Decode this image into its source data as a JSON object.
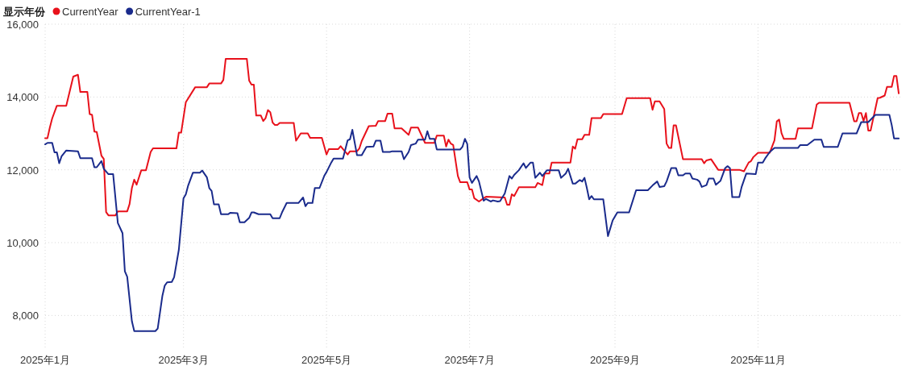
{
  "chart_data": {
    "type": "line",
    "legend_title": "显示年份",
    "legend": "top left",
    "grid": true,
    "xlim": [
      "2025-01-01",
      "2026-01-01"
    ],
    "xticks": [
      {
        "value": "2025-01-01",
        "label": "2025年1月"
      },
      {
        "value": "2025-03-01",
        "label": "2025年3月"
      },
      {
        "value": "2025-05-01",
        "label": "2025年5月"
      },
      {
        "value": "2025-07-01",
        "label": "2025年7月"
      },
      {
        "value": "2025-09-01",
        "label": "2025年9月"
      },
      {
        "value": "2025-11-01",
        "label": "2025年11月"
      }
    ],
    "ylim": [
      7100,
      16000
    ],
    "yticks": [
      {
        "value": 8000,
        "label": "8,000"
      },
      {
        "value": 10000,
        "label": "10,000"
      },
      {
        "value": 12000,
        "label": "12,000"
      },
      {
        "value": 14000,
        "label": "14,000"
      },
      {
        "value": 16000,
        "label": "16,000"
      }
    ],
    "series": [
      {
        "name": "CurrentYear",
        "color": "#e8111b",
        "x": [
          "2025-01-01",
          "2025-01-02",
          "2025-01-03",
          "2025-01-04",
          "2025-01-06",
          "2025-01-10",
          "2025-01-13",
          "2025-01-15",
          "2025-01-16",
          "2025-01-19",
          "2025-01-20",
          "2025-01-21",
          "2025-01-22",
          "2025-01-23",
          "2025-01-25",
          "2025-01-26",
          "2025-01-27",
          "2025-01-28",
          "2025-01-31",
          "2025-02-01",
          "2025-02-05",
          "2025-02-06",
          "2025-02-07",
          "2025-02-08",
          "2025-02-09",
          "2025-02-11",
          "2025-02-13",
          "2025-02-15",
          "2025-02-16",
          "2025-02-26",
          "2025-02-27",
          "2025-02-28",
          "2025-03-02",
          "2025-03-06",
          "2025-03-11",
          "2025-03-12",
          "2025-03-17",
          "2025-03-18",
          "2025-03-19",
          "2025-03-28",
          "2025-03-29",
          "2025-03-30",
          "2025-03-31",
          "2025-04-01",
          "2025-04-03",
          "2025-04-04",
          "2025-04-05",
          "2025-04-06",
          "2025-04-07",
          "2025-04-08",
          "2025-04-09",
          "2025-04-10",
          "2025-04-11",
          "2025-04-17",
          "2025-04-18",
          "2025-04-20",
          "2025-04-23",
          "2025-04-24",
          "2025-04-29",
          "2025-05-01",
          "2025-05-02",
          "2025-05-06",
          "2025-05-07",
          "2025-05-08",
          "2025-05-10",
          "2025-05-11",
          "2025-05-14",
          "2025-05-15",
          "2025-05-16",
          "2025-05-19",
          "2025-05-22",
          "2025-05-23",
          "2025-05-26",
          "2025-05-27",
          "2025-05-29",
          "2025-05-30",
          "2025-06-02",
          "2025-06-05",
          "2025-06-06",
          "2025-06-09",
          "2025-06-12",
          "2025-06-16",
          "2025-06-17",
          "2025-06-20",
          "2025-06-21",
          "2025-06-22",
          "2025-06-23",
          "2025-06-24",
          "2025-06-26",
          "2025-06-27",
          "2025-06-30",
          "2025-07-01",
          "2025-07-02",
          "2025-07-03",
          "2025-07-05",
          "2025-07-07",
          "2025-07-08",
          "2025-07-16",
          "2025-07-17",
          "2025-07-18",
          "2025-07-19",
          "2025-07-20",
          "2025-07-22",
          "2025-07-29",
          "2025-07-30",
          "2025-08-01",
          "2025-08-02",
          "2025-08-04",
          "2025-08-05",
          "2025-08-13",
          "2025-08-14",
          "2025-08-15",
          "2025-08-16",
          "2025-08-18",
          "2025-08-19",
          "2025-08-21",
          "2025-08-22",
          "2025-08-26",
          "2025-08-27",
          "2025-09-04",
          "2025-09-06",
          "2025-09-16",
          "2025-09-17",
          "2025-09-18",
          "2025-09-20",
          "2025-09-22",
          "2025-09-23",
          "2025-09-24",
          "2025-09-25",
          "2025-09-26",
          "2025-09-27",
          "2025-09-30",
          "2025-10-08",
          "2025-10-09",
          "2025-10-10",
          "2025-10-12",
          "2025-10-15",
          "2025-10-24",
          "2025-10-26",
          "2025-10-28",
          "2025-10-29",
          "2025-10-30",
          "2025-11-01",
          "2025-11-06",
          "2025-11-08",
          "2025-11-09",
          "2025-11-10",
          "2025-11-11",
          "2025-11-12",
          "2025-11-17",
          "2025-11-18",
          "2025-11-24",
          "2025-11-26",
          "2025-11-27",
          "2025-12-10",
          "2025-12-12",
          "2025-12-13",
          "2025-12-14",
          "2025-12-15",
          "2025-12-16",
          "2025-12-17",
          "2025-12-18",
          "2025-12-19",
          "2025-12-22",
          "2025-12-23",
          "2025-12-25",
          "2025-12-26",
          "2025-12-28",
          "2025-12-29",
          "2025-12-30",
          "2025-12-31"
        ],
        "values": [
          12870,
          12870,
          13160,
          13410,
          13760,
          13760,
          14560,
          14610,
          14140,
          14140,
          13530,
          13510,
          13050,
          13040,
          12390,
          12300,
          10840,
          10750,
          10750,
          10860,
          10860,
          11060,
          11500,
          11730,
          11590,
          11990,
          11990,
          12490,
          12590,
          12590,
          13020,
          13020,
          13860,
          14270,
          14270,
          14370,
          14370,
          14470,
          15050,
          15050,
          14450,
          14340,
          14340,
          13490,
          13490,
          13340,
          13420,
          13640,
          13580,
          13300,
          13230,
          13230,
          13290,
          13290,
          12800,
          13000,
          13000,
          12880,
          12880,
          12420,
          12570,
          12570,
          12650,
          12570,
          12420,
          12510,
          12510,
          12590,
          12790,
          13200,
          13210,
          13340,
          13340,
          13540,
          13540,
          13140,
          13140,
          12960,
          13160,
          13160,
          12740,
          12740,
          12940,
          12940,
          12640,
          12830,
          12720,
          12680,
          11830,
          11660,
          11660,
          11460,
          11460,
          11220,
          11130,
          11220,
          11260,
          11240,
          11040,
          11040,
          11330,
          11280,
          11520,
          11520,
          11640,
          11580,
          11900,
          11900,
          12200,
          12200,
          12640,
          12580,
          12840,
          12840,
          12960,
          12960,
          13420,
          13420,
          13530,
          13530,
          13970,
          13970,
          13650,
          13880,
          13880,
          13670,
          12720,
          12600,
          12600,
          13220,
          13220,
          12290,
          12290,
          12180,
          12260,
          12290,
          12000,
          12000,
          11960,
          12200,
          12240,
          12350,
          12470,
          12470,
          12810,
          13330,
          13380,
          13010,
          12850,
          12850,
          13140,
          13140,
          13790,
          13840,
          13840,
          13330,
          13330,
          13560,
          13560,
          13340,
          13560,
          13080,
          13080,
          13970,
          13980,
          14040,
          14280,
          14280,
          14580,
          14580,
          14100
        ]
      },
      {
        "name": "CurrentYear-1",
        "color": "#1a2b8c",
        "x": [
          "2025-01-01",
          "2025-01-02",
          "2025-01-04",
          "2025-01-05",
          "2025-01-06",
          "2025-01-07",
          "2025-01-08",
          "2025-01-10",
          "2025-01-15",
          "2025-01-16",
          "2025-01-21",
          "2025-01-22",
          "2025-01-23",
          "2025-01-25",
          "2025-01-26",
          "2025-01-28",
          "2025-01-30",
          "2025-02-01",
          "2025-02-03",
          "2025-02-04",
          "2025-02-05",
          "2025-02-07",
          "2025-02-08",
          "2025-02-17",
          "2025-02-18",
          "2025-02-20",
          "2025-02-21",
          "2025-02-22",
          "2025-02-24",
          "2025-02-25",
          "2025-02-27",
          "2025-03-01",
          "2025-03-02",
          "2025-03-03",
          "2025-03-05",
          "2025-03-08",
          "2025-03-09",
          "2025-03-11",
          "2025-03-12",
          "2025-03-13",
          "2025-03-14",
          "2025-03-16",
          "2025-03-17",
          "2025-03-20",
          "2025-03-21",
          "2025-03-24",
          "2025-03-25",
          "2025-03-27",
          "2025-03-29",
          "2025-03-30",
          "2025-03-31",
          "2025-04-02",
          "2025-04-07",
          "2025-04-08",
          "2025-04-11",
          "2025-04-12",
          "2025-04-14",
          "2025-04-19",
          "2025-04-21",
          "2025-04-22",
          "2025-04-23",
          "2025-04-25",
          "2025-04-26",
          "2025-04-28",
          "2025-04-30",
          "2025-05-01",
          "2025-05-03",
          "2025-05-04",
          "2025-05-08",
          "2025-05-10",
          "2025-05-11",
          "2025-05-12",
          "2025-05-14",
          "2025-05-16",
          "2025-05-18",
          "2025-05-21",
          "2025-05-22",
          "2025-05-24",
          "2025-05-25",
          "2025-05-28",
          "2025-05-29",
          "2025-06-02",
          "2025-06-03",
          "2025-06-05",
          "2025-06-06",
          "2025-06-08",
          "2025-06-09",
          "2025-06-12",
          "2025-06-13",
          "2025-06-14",
          "2025-06-16",
          "2025-06-17",
          "2025-06-27",
          "2025-06-28",
          "2025-06-29",
          "2025-06-30",
          "2025-07-01",
          "2025-07-02",
          "2025-07-04",
          "2025-07-05",
          "2025-07-07",
          "2025-07-08",
          "2025-07-10",
          "2025-07-11",
          "2025-07-13",
          "2025-07-14",
          "2025-07-16",
          "2025-07-18",
          "2025-07-19",
          "2025-07-20",
          "2025-07-22",
          "2025-07-24",
          "2025-07-25",
          "2025-07-27",
          "2025-07-28",
          "2025-07-29",
          "2025-07-31",
          "2025-08-01",
          "2025-08-03",
          "2025-08-08",
          "2025-08-09",
          "2025-08-11",
          "2025-08-12",
          "2025-08-14",
          "2025-08-15",
          "2025-08-17",
          "2025-08-18",
          "2025-08-19",
          "2025-08-20",
          "2025-08-21",
          "2025-08-22",
          "2025-08-23",
          "2025-08-27",
          "2025-08-29",
          "2025-08-31",
          "2025-09-02",
          "2025-09-07",
          "2025-09-10",
          "2025-09-15",
          "2025-09-17",
          "2025-09-19",
          "2025-09-20",
          "2025-09-22",
          "2025-09-23",
          "2025-09-25",
          "2025-09-27",
          "2025-09-28",
          "2025-09-30",
          "2025-10-01",
          "2025-10-03",
          "2025-10-04",
          "2025-10-06",
          "2025-10-07",
          "2025-10-08",
          "2025-10-10",
          "2025-10-11",
          "2025-10-13",
          "2025-10-14",
          "2025-10-16",
          "2025-10-18",
          "2025-10-19",
          "2025-10-20",
          "2025-10-21",
          "2025-10-24",
          "2025-10-25",
          "2025-10-27",
          "2025-10-31",
          "2025-11-01",
          "2025-11-03",
          "2025-11-04",
          "2025-11-06",
          "2025-11-08",
          "2025-11-18",
          "2025-11-19",
          "2025-11-22",
          "2025-11-25",
          "2025-11-28",
          "2025-11-29",
          "2025-12-05",
          "2025-12-07",
          "2025-12-13",
          "2025-12-15",
          "2025-12-18",
          "2025-12-21",
          "2025-12-27",
          "2025-12-28",
          "2025-12-29",
          "2025-12-31"
        ],
        "values": [
          12700,
          12740,
          12740,
          12480,
          12480,
          12180,
          12370,
          12530,
          12510,
          12320,
          12320,
          12070,
          12070,
          12240,
          12030,
          11880,
          11880,
          10540,
          10260,
          9210,
          9060,
          7840,
          7570,
          7570,
          7640,
          8540,
          8820,
          8910,
          8920,
          9050,
          9800,
          11220,
          11330,
          11570,
          11920,
          11920,
          11980,
          11790,
          11500,
          11420,
          11050,
          11050,
          10780,
          10780,
          10820,
          10810,
          10560,
          10560,
          10680,
          10830,
          10830,
          10780,
          10780,
          10670,
          10670,
          10830,
          11090,
          11090,
          11240,
          11000,
          11090,
          11090,
          11500,
          11500,
          11830,
          11940,
          12200,
          12310,
          12310,
          12810,
          12840,
          13100,
          12400,
          12400,
          12630,
          12640,
          12800,
          12800,
          12490,
          12490,
          12510,
          12510,
          12290,
          12490,
          12680,
          12720,
          12830,
          12830,
          13060,
          12850,
          12850,
          12560,
          12560,
          12640,
          12850,
          12710,
          11790,
          11640,
          11830,
          11680,
          11150,
          11200,
          11130,
          11160,
          11130,
          11140,
          11350,
          11830,
          11760,
          11860,
          11990,
          12180,
          12050,
          12200,
          12200,
          11780,
          11920,
          11830,
          11990,
          11990,
          11780,
          11900,
          12030,
          11620,
          11620,
          11720,
          11680,
          11780,
          11500,
          11190,
          11280,
          11190,
          11190,
          10180,
          10610,
          10830,
          10830,
          11440,
          11440,
          11570,
          11680,
          11530,
          11550,
          11680,
          12050,
          12050,
          11850,
          11850,
          11900,
          11900,
          11760,
          11730,
          11680,
          11530,
          11580,
          11760,
          11760,
          11590,
          11700,
          12050,
          12100,
          12050,
          11250,
          11250,
          11530,
          11900,
          11880,
          12200,
          12200,
          12310,
          12490,
          12600,
          12600,
          12680,
          12680,
          12830,
          12830,
          12630,
          12630,
          13000,
          13000,
          13310,
          13310,
          13510,
          13510,
          13230,
          12860,
          12860
        ]
      }
    ]
  }
}
